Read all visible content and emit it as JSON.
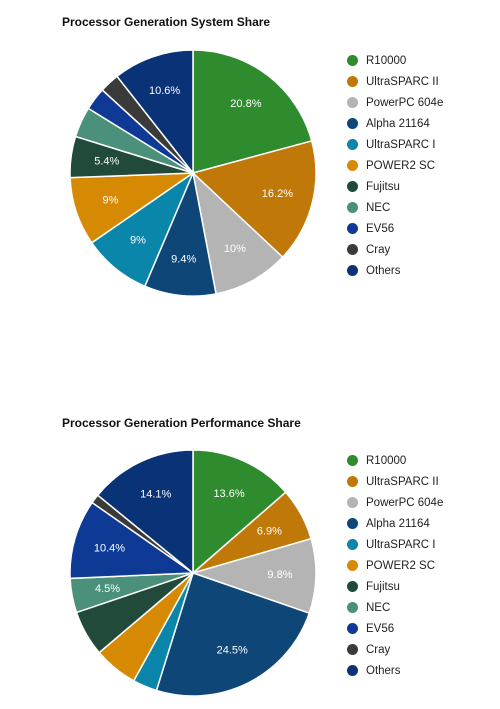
{
  "colors": [
    "#2e8b2e",
    "#c07808",
    "#b4b4b4",
    "#0d4677",
    "#0a86ab",
    "#d68a04",
    "#224a3a",
    "#4a907b",
    "#0e3a96",
    "#3a3a3a",
    "#0a3276"
  ],
  "chart_data": [
    {
      "type": "pie",
      "title": "Processor Generation System Share",
      "legend_position": "right",
      "categories": [
        "R10000",
        "UltraSPARC II",
        "PowerPC 604e",
        "Alpha 21164",
        "UltraSPARC I",
        "POWER2 SC",
        "Fujitsu",
        "NEC",
        "EV56",
        "Cray",
        "Others"
      ],
      "values": [
        20.8,
        16.2,
        10,
        9.4,
        9,
        9,
        5.4,
        4.0,
        3.0,
        2.6,
        10.6
      ],
      "labels": [
        "20.8%",
        "16.2%",
        "10%",
        "9.4%",
        "9%",
        "9%",
        "5.4%",
        "",
        "",
        "",
        "10.6%"
      ]
    },
    {
      "type": "pie",
      "title": "Processor Generation Performance Share",
      "legend_position": "right",
      "categories": [
        "R10000",
        "UltraSPARC II",
        "PowerPC 604e",
        "Alpha 21164",
        "UltraSPARC I",
        "POWER2 SC",
        "Fujitsu",
        "NEC",
        "EV56",
        "Cray",
        "Others"
      ],
      "values": [
        13.6,
        6.9,
        9.8,
        24.5,
        3.2,
        5.8,
        6.0,
        4.5,
        10.4,
        1.2,
        14.1
      ],
      "labels": [
        "13.6%",
        "6.9%",
        "9.8%",
        "24.5%",
        "",
        "",
        "",
        "4.5%",
        "10.4%",
        "",
        "14.1%"
      ]
    }
  ]
}
